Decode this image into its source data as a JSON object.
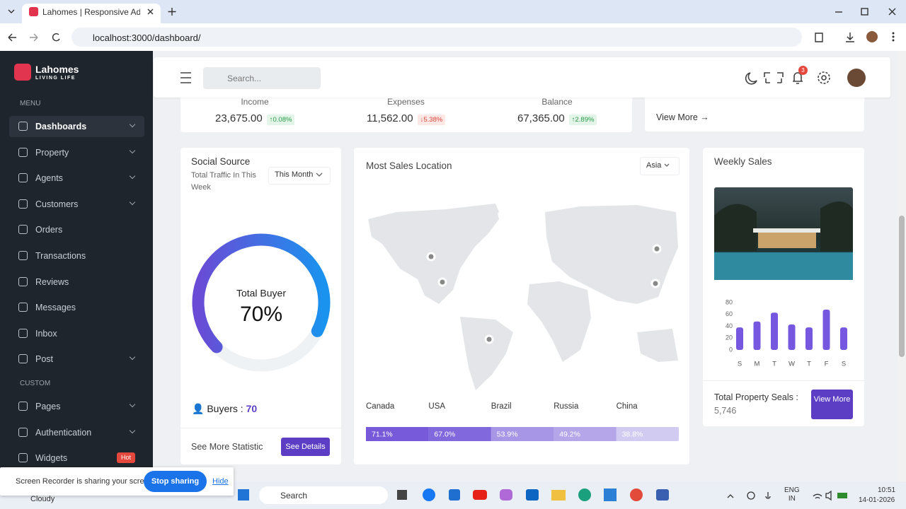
{
  "browser": {
    "tab_title": "Lahomes | Responsive Admin D",
    "url": "localhost:3000/dashboard/"
  },
  "sidebar": {
    "brand": "Lahomes",
    "tagline": "LIVING LIFE",
    "menu_label": "MENU",
    "menu": [
      {
        "label": "Dashboards",
        "submenu": true,
        "active": true
      },
      {
        "label": "Property",
        "submenu": true
      },
      {
        "label": "Agents",
        "submenu": true
      },
      {
        "label": "Customers",
        "submenu": true
      },
      {
        "label": "Orders"
      },
      {
        "label": "Transactions"
      },
      {
        "label": "Reviews"
      },
      {
        "label": "Messages"
      },
      {
        "label": "Inbox"
      },
      {
        "label": "Post",
        "submenu": true
      }
    ],
    "custom_label": "CUSTOM",
    "custom": [
      {
        "label": "Pages",
        "submenu": true
      },
      {
        "label": "Authentication",
        "submenu": true
      },
      {
        "label": "Widgets",
        "badge": "Hot"
      }
    ]
  },
  "topbar": {
    "search_placeholder": "Search...",
    "notifications": 3
  },
  "stats": [
    {
      "label": "Income",
      "value": "23,675.00",
      "change": "0.08%",
      "trend": "up"
    },
    {
      "label": "Expenses",
      "value": "11,562.00",
      "change": "5.38%",
      "trend": "down"
    },
    {
      "label": "Balance",
      "value": "67,365.00",
      "change": "2.89%",
      "trend": "up"
    }
  ],
  "view_more": "View More",
  "social_source": {
    "title": "Social Source",
    "subtitle": "Total Traffic In This Week",
    "filter": "This Month",
    "buyers_label": "Buyers :",
    "buyers": 70,
    "footer": "See More Statistic",
    "button": "See Details"
  },
  "sales_location": {
    "title": "Most Sales Location",
    "filter": "Asia"
  },
  "weekly_sales": {
    "title": "Weekly Sales",
    "total_label": "Total Property Seals :",
    "total": "5,746",
    "button": "View More"
  },
  "chart_data": [
    {
      "type": "radial",
      "title": "Total Buyer",
      "values": [
        70
      ],
      "value_labels": [
        "70%"
      ],
      "ylim": [
        0,
        100
      ]
    },
    {
      "type": "bar",
      "categories": [
        "S",
        "M",
        "T",
        "W",
        "T",
        "F",
        "S"
      ],
      "values": [
        38,
        48,
        63,
        43,
        38,
        68,
        38
      ],
      "ylim": [
        0,
        80
      ],
      "yticks": [
        0,
        20,
        40,
        60,
        80
      ],
      "color": "#7658e0"
    },
    {
      "type": "progress",
      "categories": [
        "Canada",
        "USA",
        "Brazil",
        "Russia",
        "China"
      ],
      "values": [
        71.1,
        67.0,
        53.9,
        49.2,
        38.8
      ],
      "value_labels": [
        "71.1%",
        "67.0%",
        "53.9%",
        "49.2%",
        "38.8%"
      ],
      "color": "#6a4bd6"
    }
  ],
  "screen_share": {
    "message": "Screen Recorder is sharing your screen.",
    "stop": "Stop sharing",
    "hide": "Hide"
  },
  "taskbar": {
    "weather": "Cloudy",
    "search": "Search",
    "language": [
      "ENG",
      "IN"
    ],
    "time": "10:51",
    "date": "14-01-2026"
  }
}
